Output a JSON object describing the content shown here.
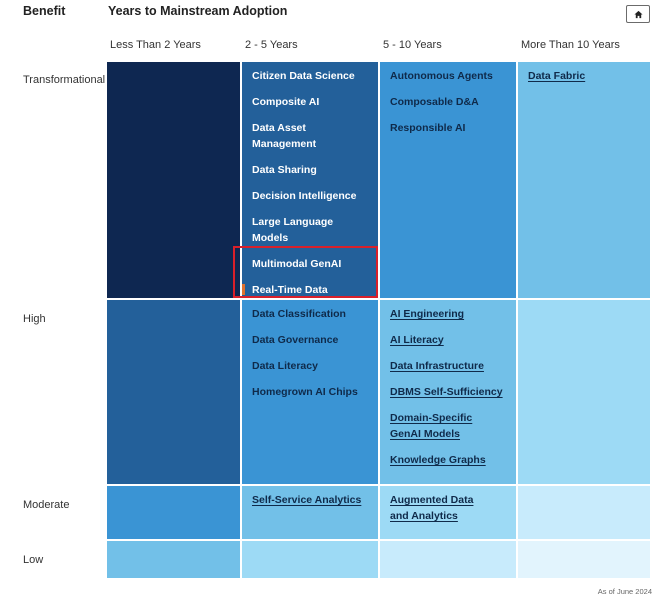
{
  "header": {
    "benefit_label": "Benefit",
    "years_label": "Years to Mainstream Adoption",
    "home_button_icon": "home-icon"
  },
  "chart_data": {
    "type": "heatmap",
    "title": "Years to Mainstream Adoption",
    "ylabel": "Benefit",
    "columns": [
      "Less Than 2 Years",
      "2 - 5 Years",
      "5 - 10 Years",
      "More Than 10 Years"
    ],
    "rows": [
      "Transformational",
      "High",
      "Moderate",
      "Low"
    ],
    "cells": [
      {
        "row": "Transformational",
        "col": "Less Than 2 Years",
        "color": "#0e2751",
        "items": []
      },
      {
        "row": "Transformational",
        "col": "2 - 5 Years",
        "color": "#23609a",
        "items": [
          "Citizen Data Science",
          "Composite AI",
          "Data Asset Management",
          "Data Sharing",
          "Decision Intelligence",
          "Large Language Models",
          "Multimodal GenAI",
          "Real-Time Data Management"
        ]
      },
      {
        "row": "Transformational",
        "col": "5 - 10 Years",
        "color": "#3a94d4",
        "items": [
          "Autonomous Agents",
          "Composable D&A",
          "Responsible AI"
        ]
      },
      {
        "row": "Transformational",
        "col": "More Than 10 Years",
        "color": "#72c0e8",
        "items": [
          "Data Fabric"
        ]
      },
      {
        "row": "High",
        "col": "Less Than 2 Years",
        "color": "#23609a",
        "items": []
      },
      {
        "row": "High",
        "col": "2 - 5 Years",
        "color": "#3a94d4",
        "items": [
          "Data Classification",
          "Data Governance",
          "Data Literacy",
          "Homegrown AI Chips"
        ]
      },
      {
        "row": "High",
        "col": "5 - 10 Years",
        "color": "#72c0e8",
        "items": [
          "AI Engineering",
          "AI Literacy",
          "Data Infrastructure",
          "DBMS Self-Sufficiency",
          "Domain-Specific GenAI Models",
          "Knowledge Graphs"
        ]
      },
      {
        "row": "High",
        "col": "More Than 10 Years",
        "color": "#9ddaf5",
        "items": []
      },
      {
        "row": "Moderate",
        "col": "Less Than 2 Years",
        "color": "#3a94d4",
        "items": []
      },
      {
        "row": "Moderate",
        "col": "2 - 5 Years",
        "color": "#72c0e8",
        "items": [
          "Self-Service Analytics"
        ]
      },
      {
        "row": "Moderate",
        "col": "5 - 10 Years",
        "color": "#9ddaf5",
        "items": [
          "Augmented Data and Analytics"
        ]
      },
      {
        "row": "Moderate",
        "col": "More Than 10 Years",
        "color": "#c8ebfc",
        "items": []
      },
      {
        "row": "Low",
        "col": "Less Than 2 Years",
        "color": "#72c0e8",
        "items": []
      },
      {
        "row": "Low",
        "col": "2 - 5 Years",
        "color": "#9ddaf5",
        "items": []
      },
      {
        "row": "Low",
        "col": "5 - 10 Years",
        "color": "#c8ebfc",
        "items": []
      },
      {
        "row": "Low",
        "col": "More Than 10 Years",
        "color": "#e2f4fd",
        "items": []
      }
    ],
    "highlighted_item": "Real-Time Data Management",
    "highlight_color": "#d9202a",
    "marker_color": "#e0722f"
  },
  "footer": {
    "as_of": "As of June 2024"
  }
}
